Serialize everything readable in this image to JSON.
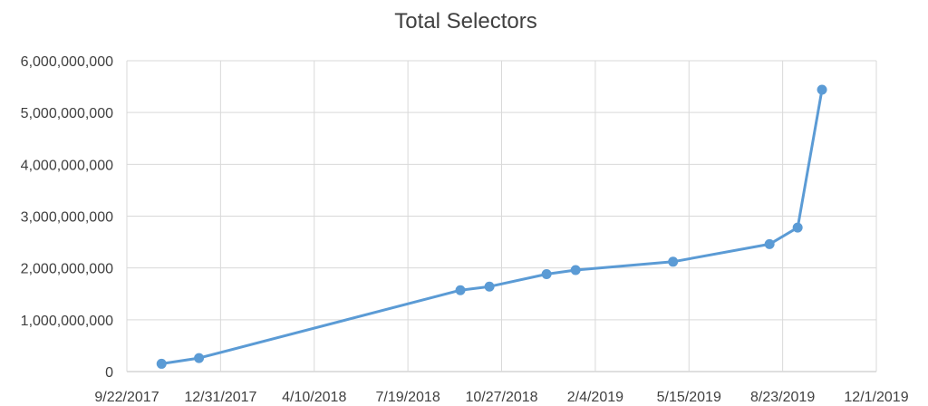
{
  "chart_data": {
    "type": "line",
    "title": "Total Selectors",
    "xlabel": "",
    "ylabel": "",
    "x_axis_type": "date",
    "x_ticks": [
      "9/22/2017",
      "12/31/2017",
      "4/10/2018",
      "7/19/2018",
      "10/27/2018",
      "2/4/2019",
      "5/15/2019",
      "8/23/2019",
      "12/1/2019"
    ],
    "xlim": [
      "9/22/2017",
      "12/1/2019"
    ],
    "y_ticks": [
      "0",
      "1,000,000,000",
      "2,000,000,000",
      "3,000,000,000",
      "4,000,000,000",
      "5,000,000,000",
      "6,000,000,000"
    ],
    "ylim": [
      0,
      6000000000
    ],
    "grid": true,
    "legend": "none",
    "series": [
      {
        "color": "#5B9BD5",
        "marker": "circle",
        "points": [
          {
            "x": "10/29/2017",
            "y": 150000000
          },
          {
            "x": "12/8/2017",
            "y": 260000000
          },
          {
            "x": "9/13/2018",
            "y": 1570000000
          },
          {
            "x": "10/14/2018",
            "y": 1640000000
          },
          {
            "x": "12/14/2018",
            "y": 1880000000
          },
          {
            "x": "1/14/2019",
            "y": 1960000000
          },
          {
            "x": "4/28/2019",
            "y": 2120000000
          },
          {
            "x": "8/9/2019",
            "y": 2460000000
          },
          {
            "x": "9/8/2019",
            "y": 2780000000
          },
          {
            "x": "10/4/2019",
            "y": 5440000000
          }
        ]
      }
    ]
  }
}
